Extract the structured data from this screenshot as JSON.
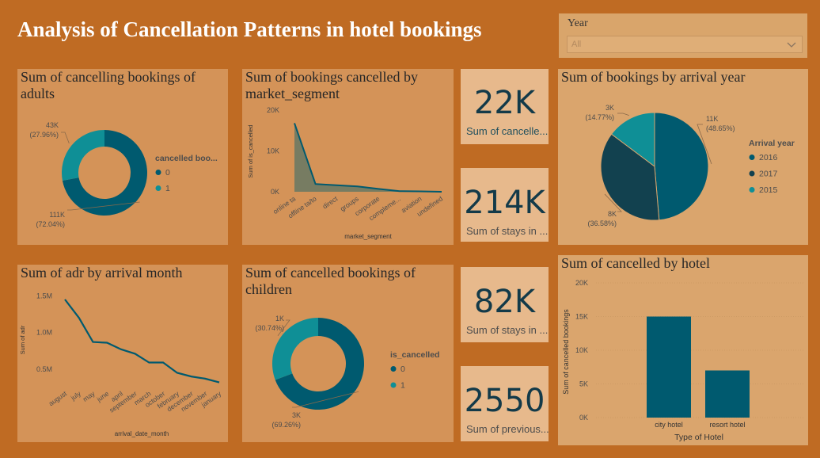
{
  "title": "Analysis of Cancellation Patterns in hotel bookings",
  "slicer": {
    "label": "Year",
    "value": "All"
  },
  "colors": {
    "background": "#bf6b23",
    "teal": "#118dff",
    "dark_teal": "#005a6f",
    "darkest": "#12414f",
    "light_teal": "#0f8f96",
    "card_text": "#133a49"
  },
  "cards": [
    {
      "value": "22K",
      "label": "Sum of cancelle..."
    },
    {
      "value": "214K",
      "label": "Sum of stays in ..."
    },
    {
      "value": "82K",
      "label": "Sum of stays in ..."
    },
    {
      "value": "2550",
      "label": "Sum of previous..."
    }
  ],
  "chart_data": [
    {
      "type": "pie",
      "title": "Sum of cancelling bookings of adults",
      "donut": true,
      "legend_title": "cancelled boo...",
      "legend_position": "right",
      "slices": [
        {
          "label": "0",
          "value": 111000,
          "value_text": "111K",
          "pct_text": "(72.04%)",
          "pct": 72.04
        },
        {
          "label": "1",
          "value": 43000,
          "value_text": "43K",
          "pct_text": "(27.96%)",
          "pct": 27.96
        }
      ]
    },
    {
      "type": "area",
      "title": "Sum of bookings cancelled by market_segment",
      "xlabel": "market_segment",
      "ylabel": "Sum of is_cancelled",
      "ylim": [
        0,
        20000
      ],
      "yticks": [
        0,
        10000,
        20000
      ],
      "ytick_labels": [
        "0K",
        "10K",
        "20K"
      ],
      "categories": [
        "online ta",
        "offline ta/to",
        "direct",
        "groups",
        "corporate",
        "compleme...",
        "aviation",
        "undefined"
      ],
      "values": [
        16800,
        1900,
        1600,
        1300,
        700,
        150,
        100,
        10
      ]
    },
    {
      "type": "pie",
      "title": "Sum of bookings by arrival year",
      "donut": false,
      "legend_title": "Arrival year",
      "legend_position": "right",
      "slices": [
        {
          "label": "2016",
          "value": 11000,
          "value_text": "11K",
          "pct_text": "(48.65%)",
          "pct": 48.65
        },
        {
          "label": "2017",
          "value": 8000,
          "value_text": "8K",
          "pct_text": "(36.58%)",
          "pct": 36.58
        },
        {
          "label": "2015",
          "value": 3000,
          "value_text": "3K",
          "pct_text": "(14.77%)",
          "pct": 14.77
        }
      ]
    },
    {
      "type": "line",
      "title": "Sum of adr by arrival month",
      "xlabel": "arrival_date_month",
      "ylabel": "Sum of adr",
      "ylim": [
        0.25,
        1.6
      ],
      "yticks": [
        0.5,
        1.0,
        1.5
      ],
      "ytick_labels": [
        "0.5M",
        "1.0M",
        "1.5M"
      ],
      "categories": [
        "august",
        "july",
        "may",
        "june",
        "april",
        "september",
        "march",
        "october",
        "february",
        "december",
        "november",
        "january"
      ],
      "values": [
        1.45,
        1.2,
        0.87,
        0.86,
        0.77,
        0.71,
        0.59,
        0.59,
        0.45,
        0.4,
        0.37,
        0.32
      ]
    },
    {
      "type": "pie",
      "title": "Sum of cancelled bookings of children",
      "donut": true,
      "legend_title": "is_cancelled",
      "legend_position": "right",
      "slices": [
        {
          "label": "0",
          "value": 3000,
          "value_text": "3K",
          "pct_text": "(69.26%)",
          "pct": 69.26
        },
        {
          "label": "1",
          "value": 1000,
          "value_text": "1K",
          "pct_text": "(30.74%)",
          "pct": 30.74
        }
      ]
    },
    {
      "type": "bar",
      "title": "Sum of cancelled by hotel",
      "xlabel": "Type of Hotel",
      "ylabel": "Sum of cancelled bookings",
      "ylim": [
        0,
        20000
      ],
      "yticks": [
        0,
        5000,
        10000,
        15000,
        20000
      ],
      "ytick_labels": [
        "0K",
        "5K",
        "10K",
        "15K",
        "20K"
      ],
      "categories": [
        "city hotel",
        "resort hotel"
      ],
      "values": [
        15000,
        7000
      ]
    }
  ]
}
